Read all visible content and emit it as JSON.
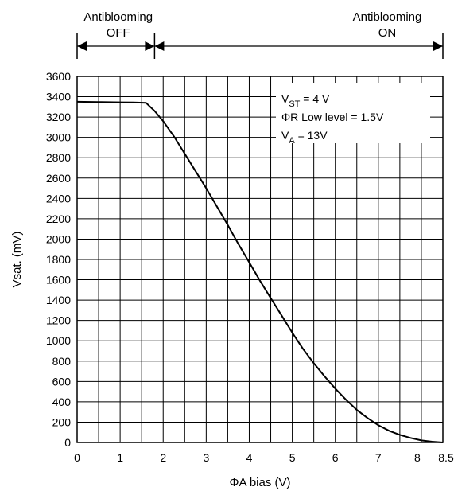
{
  "chart_data": {
    "type": "line",
    "title": "",
    "xlabel": "ΦA bias (V)",
    "ylabel": "Vsat. (mV)",
    "xlim": [
      0,
      8.5
    ],
    "ylim": [
      0,
      3600
    ],
    "grid": true,
    "x_ticks": [
      0,
      1,
      2,
      3,
      4,
      5,
      6,
      7,
      8,
      8.5
    ],
    "x_tick_labels": [
      "0",
      "1",
      "2",
      "3",
      "4",
      "5",
      "6",
      "7",
      "8",
      "8.5"
    ],
    "y_ticks": [
      0,
      200,
      400,
      600,
      800,
      1000,
      1200,
      1400,
      1600,
      1800,
      2000,
      2200,
      2400,
      2600,
      2800,
      3000,
      3200,
      3400,
      3600
    ],
    "y_tick_labels": [
      "0",
      "200",
      "400",
      "600",
      "800",
      "1000",
      "1200",
      "1400",
      "1600",
      "1800",
      "2000",
      "2200",
      "2400",
      "2600",
      "2800",
      "3000",
      "3200",
      "3400",
      "3600"
    ],
    "series": [
      {
        "x": [
          0,
          0.5,
          1.0,
          1.3,
          1.6,
          1.8,
          2.0,
          2.25,
          2.5,
          2.75,
          3.0,
          3.25,
          3.5,
          3.75,
          4.0,
          4.25,
          4.5,
          4.75,
          5.0,
          5.25,
          5.5,
          5.75,
          6.0,
          6.25,
          6.5,
          6.75,
          7.0,
          7.25,
          7.5,
          7.75,
          8.0,
          8.25,
          8.5
        ],
        "y": [
          3350,
          3348,
          3345,
          3343,
          3340,
          3260,
          3160,
          3010,
          2840,
          2670,
          2500,
          2320,
          2140,
          1950,
          1770,
          1590,
          1420,
          1250,
          1080,
          920,
          780,
          650,
          530,
          420,
          320,
          240,
          170,
          115,
          75,
          45,
          20,
          8,
          0
        ]
      }
    ],
    "regions": [
      {
        "label_line1": "Antiblooming",
        "label_line2": "OFF",
        "x_start": 0,
        "x_end": 1.8
      },
      {
        "label_line1": "Antiblooming",
        "label_line2": "ON",
        "x_start": 1.8,
        "x_end": 8.5
      }
    ],
    "annotations": [
      {
        "main": "V",
        "sub": "ST",
        "rest": " = 4 V"
      },
      {
        "main": "ΦR Low level =  1.5V"
      },
      {
        "main": "V",
        "sub": "A",
        "rest": " =  13V"
      }
    ],
    "legend": "top-right"
  }
}
